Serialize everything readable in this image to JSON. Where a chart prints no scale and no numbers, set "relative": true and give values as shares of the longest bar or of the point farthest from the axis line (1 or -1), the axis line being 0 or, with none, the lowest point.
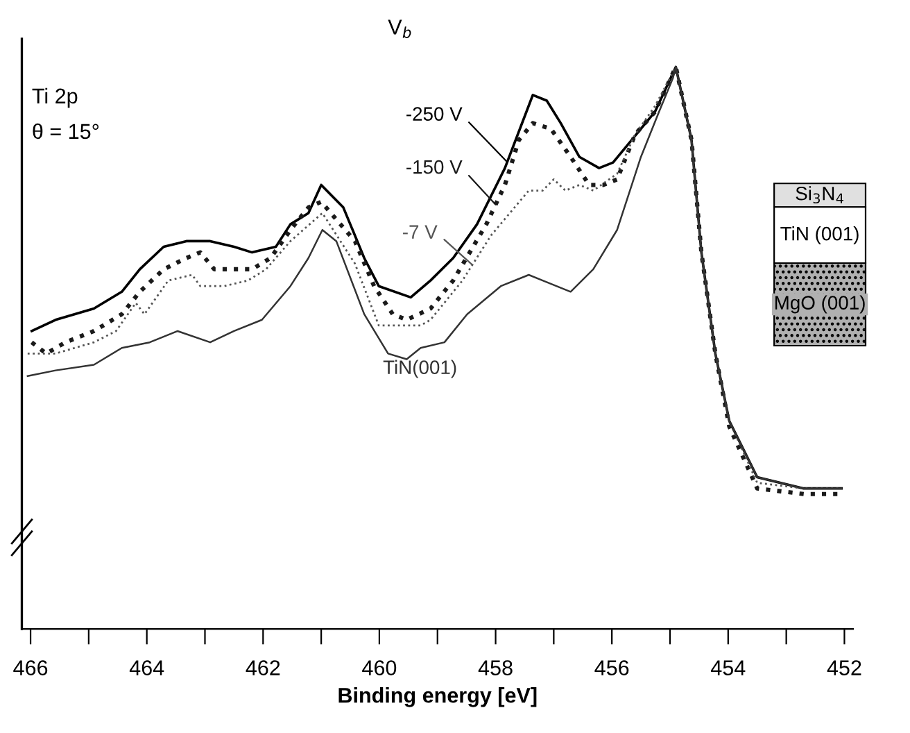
{
  "chart_data": {
    "type": "line",
    "relative": true,
    "xlabel": "Binding energy [eV]",
    "legend": false,
    "grid": false,
    "marker": "none",
    "xlim": [
      466.15,
      451.85
    ],
    "xticks": [
      466,
      {
        "value": 465,
        "label": null
      },
      464,
      {
        "value": 463,
        "label": null
      },
      462,
      {
        "value": 461,
        "label": null
      },
      460,
      {
        "value": 459,
        "label": null
      },
      458,
      {
        "value": 457,
        "label": null
      },
      456,
      {
        "value": 455,
        "label": null
      },
      454,
      {
        "value": 453,
        "label": null
      },
      452
    ],
    "legend_title": "V$_{b}$",
    "annotations": [
      "Ti 2p",
      "θ = 15°",
      "Si$_{3}$N$_{4}$",
      "TiN (001)",
      "MgO (001)"
    ],
    "series": [
      {
        "name": "-250 V",
        "color": "#000000",
        "line_style": "solid",
        "x": [
          465.98,
          465.57,
          464.91,
          464.43,
          464.12,
          463.71,
          463.32,
          462.91,
          462.5,
          462.19,
          461.78,
          461.53,
          461.22,
          461.0,
          460.62,
          460.26,
          460.01,
          459.46,
          459.12,
          458.73,
          458.32,
          457.84,
          457.36,
          457.12,
          456.88,
          456.56,
          456.22,
          455.98,
          455.74,
          455.26,
          454.9,
          454.63,
          454.46,
          454.22,
          453.98,
          453.5,
          452.7,
          452.05
        ],
        "values": [
          0.53,
          0.55,
          0.57,
          0.6,
          0.64,
          0.68,
          0.69,
          0.69,
          0.68,
          0.67,
          0.68,
          0.72,
          0.74,
          0.79,
          0.75,
          0.66,
          0.61,
          0.59,
          0.62,
          0.66,
          0.72,
          0.82,
          0.95,
          0.94,
          0.9,
          0.84,
          0.82,
          0.83,
          0.86,
          0.92,
          1.0,
          0.87,
          0.67,
          0.49,
          0.37,
          0.27,
          0.25,
          0.25
        ]
      },
      {
        "name": "-150 V",
        "color": "#1a1a1a",
        "line_style": "dotted",
        "x": [
          465.98,
          465.73,
          465.4,
          464.91,
          464.43,
          464.12,
          463.71,
          463.32,
          463.08,
          462.84,
          462.19,
          461.87,
          461.53,
          461.22,
          461.0,
          460.42,
          460.09,
          459.77,
          459.53,
          459.12,
          458.73,
          458.16,
          457.84,
          457.6,
          457.36,
          457.05,
          456.71,
          456.39,
          456.15,
          455.91,
          455.6,
          455.26,
          454.9,
          454.63,
          454.46,
          454.22,
          453.98,
          453.5,
          452.7,
          452.05
        ],
        "values": [
          0.51,
          0.49,
          0.51,
          0.53,
          0.56,
          0.6,
          0.64,
          0.66,
          0.67,
          0.64,
          0.64,
          0.66,
          0.71,
          0.75,
          0.76,
          0.69,
          0.61,
          0.56,
          0.55,
          0.57,
          0.62,
          0.72,
          0.79,
          0.87,
          0.9,
          0.89,
          0.84,
          0.79,
          0.79,
          0.8,
          0.88,
          0.92,
          1.0,
          0.87,
          0.67,
          0.49,
          0.36,
          0.25,
          0.24,
          0.24
        ]
      },
      {
        "name": "-7 V",
        "color": "#555555",
        "line_style": "dotted",
        "x": [
          466.05,
          465.57,
          464.91,
          464.53,
          464.19,
          464.04,
          463.63,
          463.22,
          463.08,
          462.67,
          462.26,
          461.95,
          461.53,
          460.98,
          460.42,
          460.01,
          459.7,
          459.29,
          459.12,
          458.57,
          458.08,
          457.43,
          457.19,
          457.0,
          456.8,
          456.56,
          456.32,
          455.91,
          455.6,
          455.26,
          454.9,
          454.63,
          454.46,
          454.22,
          453.98,
          453.5,
          452.7,
          452.05
        ],
        "values": [
          0.49,
          0.49,
          0.51,
          0.53,
          0.58,
          0.56,
          0.62,
          0.63,
          0.61,
          0.61,
          0.62,
          0.64,
          0.69,
          0.74,
          0.65,
          0.54,
          0.54,
          0.54,
          0.55,
          0.62,
          0.7,
          0.78,
          0.78,
          0.8,
          0.78,
          0.79,
          0.78,
          0.81,
          0.88,
          0.93,
          1.0,
          0.87,
          0.67,
          0.49,
          0.37,
          0.26,
          0.25,
          0.25
        ]
      },
      {
        "name": "TiN(001)",
        "color": "#333333",
        "line_style": "solid",
        "x": [
          466.05,
          465.57,
          464.91,
          464.43,
          463.95,
          463.47,
          462.91,
          462.5,
          462.02,
          461.53,
          461.22,
          460.98,
          460.74,
          460.26,
          459.85,
          459.53,
          459.29,
          458.88,
          458.49,
          457.91,
          457.43,
          457.19,
          456.71,
          456.32,
          455.91,
          455.5,
          455.19,
          454.95,
          454.9,
          454.63,
          454.46,
          454.22,
          453.98,
          453.5,
          452.7,
          452.05
        ],
        "values": [
          0.45,
          0.46,
          0.47,
          0.5,
          0.51,
          0.53,
          0.51,
          0.53,
          0.55,
          0.61,
          0.66,
          0.71,
          0.69,
          0.56,
          0.49,
          0.48,
          0.5,
          0.51,
          0.56,
          0.61,
          0.63,
          0.62,
          0.6,
          0.64,
          0.71,
          0.84,
          0.92,
          0.98,
          1.0,
          0.87,
          0.67,
          0.49,
          0.37,
          0.27,
          0.25,
          0.25
        ]
      }
    ]
  }
}
